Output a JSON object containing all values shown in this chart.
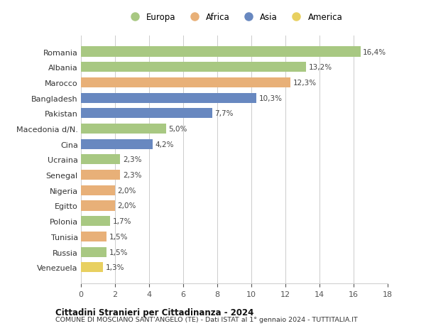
{
  "categories": [
    "Romania",
    "Albania",
    "Marocco",
    "Bangladesh",
    "Pakistan",
    "Macedonia d/N.",
    "Cina",
    "Ucraina",
    "Senegal",
    "Nigeria",
    "Egitto",
    "Polonia",
    "Tunisia",
    "Russia",
    "Venezuela"
  ],
  "values": [
    16.4,
    13.2,
    12.3,
    10.3,
    7.7,
    5.0,
    4.2,
    2.3,
    2.3,
    2.0,
    2.0,
    1.7,
    1.5,
    1.5,
    1.3
  ],
  "labels": [
    "16,4%",
    "13,2%",
    "12,3%",
    "10,3%",
    "7,7%",
    "5,0%",
    "4,2%",
    "2,3%",
    "2,3%",
    "2,0%",
    "2,0%",
    "1,7%",
    "1,5%",
    "1,5%",
    "1,3%"
  ],
  "continents": [
    "Europa",
    "Europa",
    "Africa",
    "Asia",
    "Asia",
    "Europa",
    "Asia",
    "Europa",
    "Africa",
    "Africa",
    "Africa",
    "Europa",
    "Africa",
    "Europa",
    "America"
  ],
  "colors": {
    "Europa": "#a8c882",
    "Africa": "#e8b078",
    "Asia": "#6888c0",
    "America": "#e8d060"
  },
  "legend_order": [
    "Europa",
    "Africa",
    "Asia",
    "America"
  ],
  "xlim": [
    0,
    18
  ],
  "xticks": [
    0,
    2,
    4,
    6,
    8,
    10,
    12,
    14,
    16,
    18
  ],
  "title": "Cittadini Stranieri per Cittadinanza - 2024",
  "subtitle": "COMUNE DI MOSCIANO SANT'ANGELO (TE) - Dati ISTAT al 1° gennaio 2024 - TUTTITALIA.IT",
  "background_color": "#ffffff",
  "grid_color": "#cccccc"
}
